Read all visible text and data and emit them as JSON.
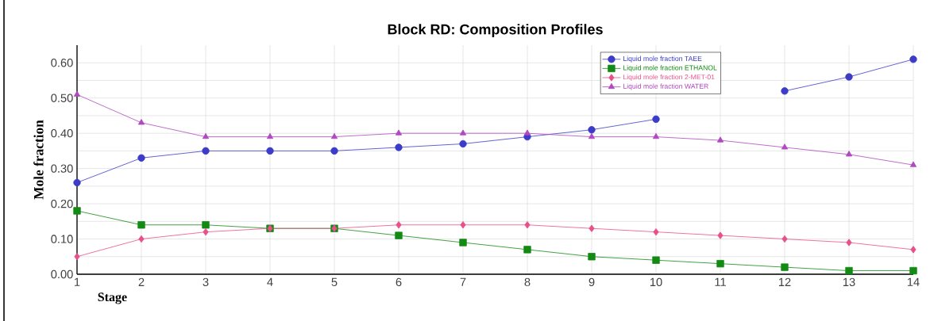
{
  "chart_data": {
    "type": "line",
    "title": "Block RD: Composition Profiles",
    "xlabel": "Stage",
    "ylabel": "Mole fraction",
    "x": [
      1,
      2,
      3,
      4,
      5,
      6,
      7,
      8,
      9,
      10,
      11,
      12,
      13,
      14
    ],
    "series": [
      {
        "name": "Liquid mole fraction TAEE",
        "color": "#3c3cc8",
        "marker": "circle",
        "values": [
          0.26,
          0.33,
          0.35,
          0.35,
          0.35,
          0.36,
          0.37,
          0.39,
          0.41,
          0.44,
          null,
          0.52,
          0.56,
          0.61
        ]
      },
      {
        "name": "Liquid mole fraction ETHANOL",
        "color": "#138a13",
        "marker": "square",
        "values": [
          0.18,
          0.14,
          0.14,
          0.13,
          0.13,
          0.11,
          0.09,
          0.07,
          0.05,
          0.04,
          0.03,
          0.02,
          0.01,
          0.01
        ]
      },
      {
        "name": "Liquid mole fraction 2-MET-01",
        "color": "#e8508a",
        "marker": "diamond",
        "values": [
          0.05,
          0.1,
          0.12,
          0.13,
          0.13,
          0.14,
          0.14,
          0.14,
          0.13,
          0.12,
          0.11,
          0.1,
          0.09,
          0.07
        ]
      },
      {
        "name": "Liquid mole fraction WATER",
        "color": "#b048c0",
        "marker": "triangle",
        "values": [
          0.51,
          0.43,
          0.39,
          0.39,
          0.39,
          0.4,
          0.4,
          0.4,
          0.39,
          0.39,
          0.38,
          0.36,
          0.34,
          0.31
        ]
      }
    ],
    "xlim": [
      1,
      14
    ],
    "ylim": [
      0,
      0.65
    ],
    "xticks": [
      1,
      2,
      3,
      4,
      5,
      6,
      7,
      8,
      9,
      10,
      11,
      12,
      13,
      14
    ],
    "yticks": [
      {
        "value": 0,
        "label": "0.00"
      },
      {
        "value": 0.1,
        "label": "0.10"
      },
      {
        "value": 0.2,
        "label": "0.20"
      },
      {
        "value": 0.3,
        "label": "0.30"
      },
      {
        "value": 0.4,
        "label": "0.40"
      },
      {
        "value": 0.5,
        "label": "0.50"
      },
      {
        "value": 0.6,
        "label": "0.60"
      }
    ],
    "grid": true,
    "legend": "top right",
    "line_style": "solid"
  }
}
